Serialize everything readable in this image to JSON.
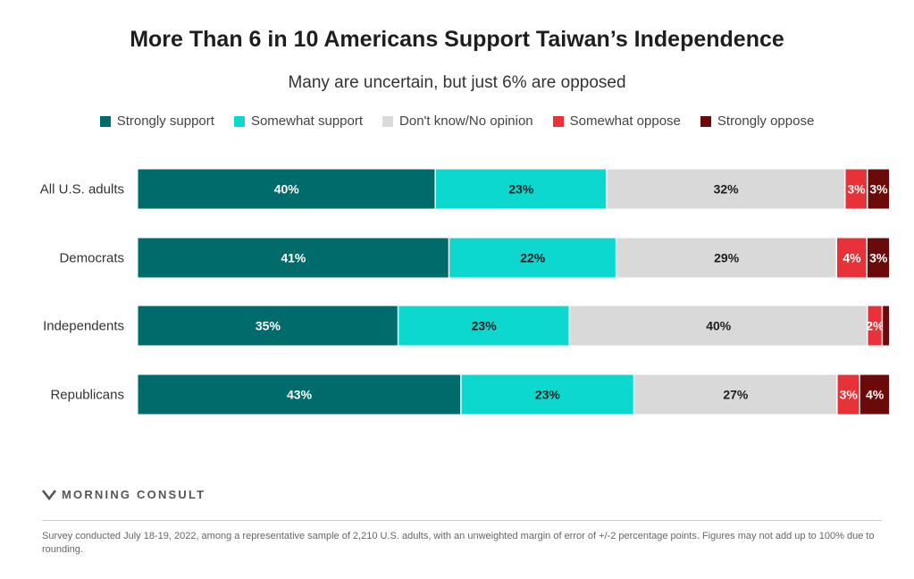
{
  "header": {
    "title": "More Than 6 in 10 Americans Support Taiwan’s Independence",
    "subtitle": "Many are uncertain, but just 6% are opposed"
  },
  "legend": [
    {
      "label": "Strongly support",
      "color": "#006b6b"
    },
    {
      "label": "Somewhat support",
      "color": "#0dd8cf"
    },
    {
      "label": "Don't know/No opinion",
      "color": "#d9d9d9"
    },
    {
      "label": "Somewhat oppose",
      "color": "#e8323a"
    },
    {
      "label": "Strongly oppose",
      "color": "#6b0a0a"
    }
  ],
  "chart_data": {
    "type": "bar",
    "orientation": "horizontal",
    "stacked": true,
    "categories": [
      "All U.S. adults",
      "Democrats",
      "Independents",
      "Republicans"
    ],
    "series": [
      {
        "name": "Strongly support",
        "values": [
          40,
          41,
          35,
          43
        ],
        "labels": [
          "40%",
          "41%",
          "35%",
          "43%"
        ]
      },
      {
        "name": "Somewhat support",
        "values": [
          23,
          22,
          23,
          23
        ],
        "labels": [
          "23%",
          "22%",
          "23%",
          "23%"
        ]
      },
      {
        "name": "Don't know/No opinion",
        "values": [
          32,
          29,
          40,
          27
        ],
        "labels": [
          "32%",
          "29%",
          "40%",
          "27%"
        ]
      },
      {
        "name": "Somewhat oppose",
        "values": [
          3,
          4,
          2,
          3
        ],
        "labels": [
          "3%",
          "4%",
          "2%",
          "3%"
        ]
      },
      {
        "name": "Strongly oppose",
        "values": [
          3,
          3,
          1,
          4
        ],
        "labels": [
          "3%",
          "3%",
          "",
          "4%"
        ]
      }
    ],
    "label_colors": [
      "#ffffff",
      "#1e1e1e",
      "#1e1e1e",
      "#ffffff",
      "#ffffff"
    ],
    "xlim": [
      0,
      100
    ],
    "grid": false,
    "legend_position": "top"
  },
  "footer": {
    "brand": "MORNING CONSULT",
    "note": "Survey conducted July 18-19, 2022, among a representative sample of 2,210 U.S. adults, with an unweighted margin of error of +/-2 percentage points. Figures may not add up to 100% due to rounding."
  }
}
